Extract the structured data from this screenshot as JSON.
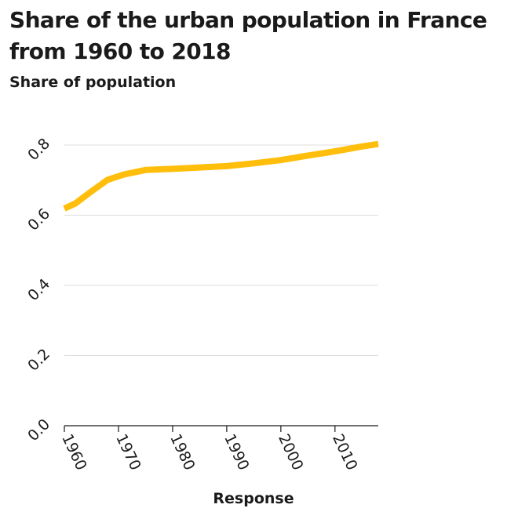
{
  "chart_data": {
    "type": "line",
    "title": "Share of the urban population in France from 1960 to 2018",
    "ylabel": "Share of population",
    "xlabel": "Response",
    "x": [
      1960,
      1962,
      1965,
      1968,
      1971,
      1975,
      1980,
      1985,
      1990,
      1995,
      2000,
      2005,
      2010,
      2015,
      2018
    ],
    "series": [
      {
        "values": [
          0.619,
          0.633,
          0.668,
          0.701,
          0.716,
          0.729,
          0.732,
          0.736,
          0.74,
          0.748,
          0.757,
          0.77,
          0.782,
          0.796,
          0.803
        ]
      }
    ],
    "xlim": [
      1960,
      2018
    ],
    "ylim": [
      0,
      0.8
    ],
    "xticks": [
      "1960",
      "1970",
      "1980",
      "1990",
      "2000",
      "2010"
    ],
    "yticks": [
      "0.0",
      "0.2",
      "0.4",
      "0.6",
      "0.8"
    ],
    "grid": "horizontal",
    "legend": "none",
    "colors": {
      "line": "#ffbe0b",
      "grid": "#dddddd",
      "axis": "#1a1a1a"
    }
  }
}
